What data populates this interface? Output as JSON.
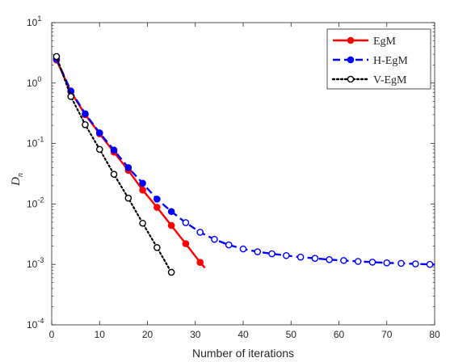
{
  "chart_data": {
    "type": "line",
    "title": "",
    "xlabel": "Number of iterations",
    "ylabel_main": "D",
    "ylabel_sub": "n",
    "y_scale": "log",
    "xlim": [
      0,
      80
    ],
    "ylim": [
      0.0001,
      10
    ],
    "grid": false,
    "legend_position": "top-right",
    "x_ticks": [
      0,
      10,
      20,
      30,
      40,
      50,
      60,
      70,
      80
    ],
    "y_ticks": [
      {
        "value": 0.0001,
        "base": "10",
        "exp": "-4"
      },
      {
        "value": 0.001,
        "base": "10",
        "exp": "-3"
      },
      {
        "value": 0.01,
        "base": "10",
        "exp": "-2"
      },
      {
        "value": 0.1,
        "base": "10",
        "exp": "-1"
      },
      {
        "value": 1,
        "base": "10",
        "exp": "0"
      },
      {
        "value": 10,
        "base": "10",
        "exp": "1"
      }
    ],
    "series": [
      {
        "name": "EgM",
        "color": "#ff0000",
        "line_style": "solid",
        "marker": "filled-circle",
        "x": [
          1,
          4,
          7,
          10,
          13,
          16,
          19,
          22,
          25,
          28,
          31
        ],
        "y": [
          2.4,
          0.72,
          0.3,
          0.145,
          0.072,
          0.036,
          0.017,
          0.0088,
          0.0044,
          0.0022,
          0.00108
        ],
        "line_end_x": 32,
        "line_end_y": 0.00088
      },
      {
        "name": "H-EgM",
        "color": "#0000ff",
        "line_style": "dashed",
        "marker": "filled-then-open-circle",
        "x": [
          1,
          4,
          7,
          10,
          13,
          16,
          19,
          22,
          25,
          28,
          31,
          34,
          37,
          40,
          43,
          46,
          49,
          52,
          55,
          58,
          61,
          64,
          67,
          70,
          73,
          76,
          79
        ],
        "y": [
          2.5,
          0.74,
          0.31,
          0.15,
          0.078,
          0.04,
          0.022,
          0.012,
          0.0075,
          0.0049,
          0.0034,
          0.0026,
          0.0021,
          0.0018,
          0.00162,
          0.0015,
          0.0014,
          0.00132,
          0.00126,
          0.0012,
          0.00116,
          0.00112,
          0.00109,
          0.00106,
          0.00104,
          0.00102,
          0.001
        ],
        "line_end_x": 80,
        "line_end_y": 0.00099,
        "filled_count": 9
      },
      {
        "name": "V-EgM",
        "color": "#000000",
        "line_style": "dotted",
        "marker": "open-circle",
        "x": [
          1,
          4,
          7,
          10,
          13,
          16,
          19,
          22,
          25
        ],
        "y": [
          2.75,
          0.6,
          0.205,
          0.08,
          0.031,
          0.0125,
          0.0048,
          0.0019,
          0.00074
        ]
      }
    ]
  }
}
